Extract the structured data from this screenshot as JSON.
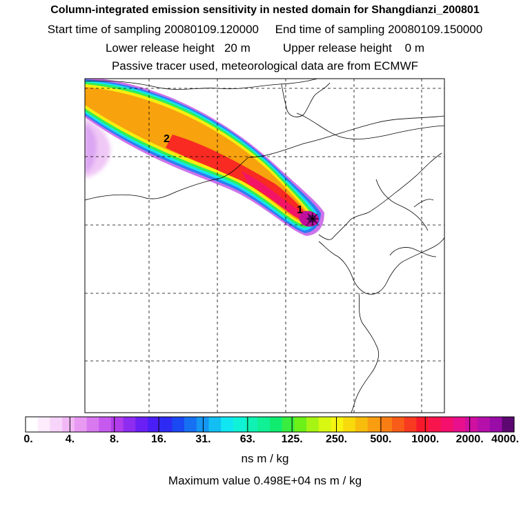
{
  "title": "Column-integrated emission sensitivity in nested domain for Shangdianzi_200801",
  "sampling": {
    "start_label": "Start time of sampling",
    "start_value": "20080109.120000",
    "end_label": "End time of sampling",
    "end_value": "20080109.150000",
    "line": "Start time of sampling 20080109.120000     End time of sampling 20080109.150000"
  },
  "release": {
    "lower_label": "Lower release height",
    "lower_value": "20 m",
    "upper_label": "Upper release height",
    "upper_value": "0 m",
    "line": "Lower release height   20 m          Upper release height    0 m"
  },
  "note": "Passive tracer used, meteorological data are from ECMWF",
  "map": {
    "markers": [
      {
        "label": "1"
      },
      {
        "label": "2"
      }
    ]
  },
  "legend": {
    "ticks": [
      "0.",
      "4.",
      "8.",
      "16.",
      "31.",
      "63.",
      "125.",
      "250.",
      "500.",
      "1000.",
      "2000.",
      "4000."
    ],
    "colors": [
      "#ffffff",
      "#fcecfc",
      "#f7d4f9",
      "#f2b8f6",
      "#e89af3",
      "#d879f0",
      "#c659ee",
      "#b23cec",
      "#8e2cf0",
      "#6a20f4",
      "#4a1ef6",
      "#2d2af4",
      "#1a48f2",
      "#1670f2",
      "#1596f2",
      "#12bef2",
      "#10e6f2",
      "#10f2d8",
      "#10f2b4",
      "#10f094",
      "#10ec70",
      "#38ec40",
      "#6cf018",
      "#a6f414",
      "#d8f812",
      "#f6f410",
      "#f8da0c",
      "#f8bc0c",
      "#f89e10",
      "#f87e14",
      "#f85c18",
      "#f83a20",
      "#f8182c",
      "#f8144c",
      "#f4106c",
      "#e8108c",
      "#d010a0",
      "#b610aa",
      "#9a0ca8",
      "#5c0870"
    ],
    "units": "ns m / kg",
    "max_value_label": "Maximum value  0.498E+04 ns m / kg"
  }
}
